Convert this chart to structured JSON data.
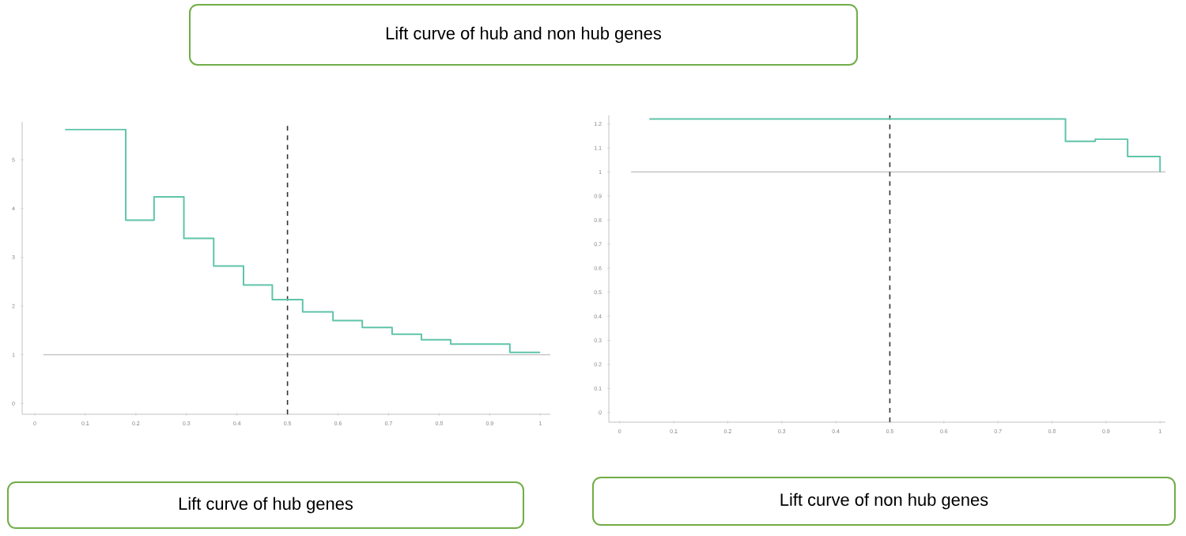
{
  "chart_data": [
    {
      "type": "other",
      "title": "Lift curve of hub and non hub genes"
    },
    {
      "type": "step",
      "title": "Lift curve of hub genes",
      "color": "#5fc4a9",
      "x": [
        0.06,
        0.18,
        0.236,
        0.295,
        0.354,
        0.413,
        0.47,
        0.53,
        0.59,
        0.648,
        0.707,
        0.765,
        0.823,
        0.94,
        1.0
      ],
      "values": [
        5.62,
        3.76,
        4.24,
        3.39,
        2.82,
        2.43,
        2.13,
        1.88,
        1.7,
        1.56,
        1.42,
        1.31,
        1.22,
        1.05,
        1.05
      ],
      "xlim": [
        -0.025,
        1.02
      ],
      "ylim": [
        -0.22,
        5.78
      ],
      "xticks": [
        0,
        0.1,
        0.2,
        0.3,
        0.4,
        0.5,
        0.6,
        0.7,
        0.8,
        0.9,
        1
      ],
      "yticks": [
        0,
        1,
        2,
        3,
        4,
        5
      ],
      "grid": false,
      "ref_lines": [
        {
          "axis": "y",
          "value": 1,
          "color": "#b0b0b0",
          "line_style": "solid"
        },
        {
          "axis": "x",
          "value": 0.5,
          "color": "#333333",
          "line_style": "dashed"
        }
      ]
    },
    {
      "type": "step",
      "title": "Lift curve of non hub genes",
      "color": "#5fc4a9",
      "x": [
        0.055,
        0.825,
        0.88,
        0.94,
        1.0
      ],
      "values": [
        1.22,
        1.127,
        1.136,
        1.064,
        1.0
      ],
      "xlim": [
        -0.02,
        1.01
      ],
      "ylim": [
        -0.04,
        1.235
      ],
      "xticks": [
        0,
        0.1,
        0.2,
        0.3,
        0.4,
        0.5,
        0.6,
        0.7,
        0.8,
        0.9,
        1
      ],
      "yticks": [
        0,
        0.1,
        0.2,
        0.3,
        0.4,
        0.5,
        0.6,
        0.7,
        0.8,
        0.9,
        1,
        1.1,
        1.2
      ],
      "grid": false,
      "ref_lines": [
        {
          "axis": "y",
          "value": 1,
          "color": "#b0b0b0",
          "line_style": "solid"
        },
        {
          "axis": "x",
          "value": 0.5,
          "color": "#333333",
          "line_style": "dashed"
        }
      ]
    }
  ]
}
